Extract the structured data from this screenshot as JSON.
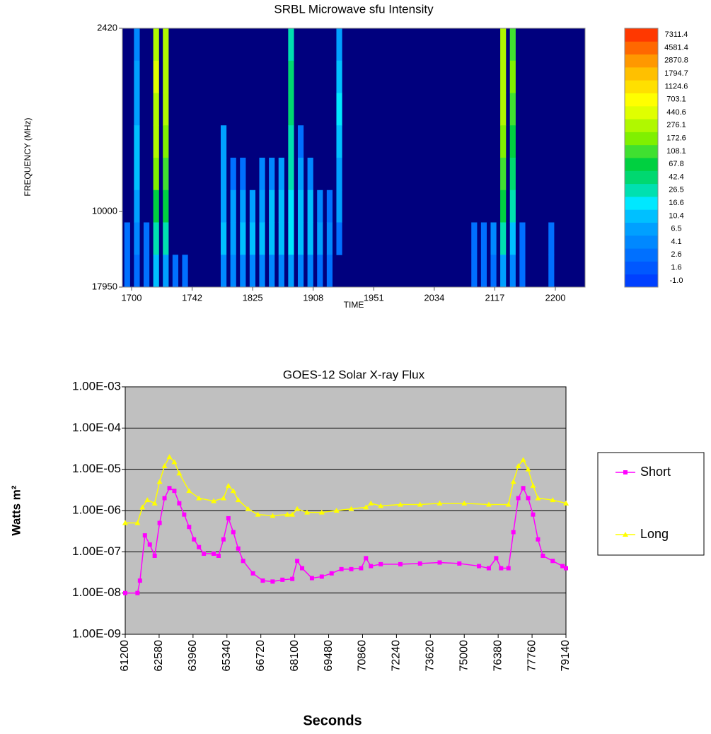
{
  "chart_data": [
    {
      "type": "heatmap",
      "title": "SRBL Microwave sfu Intensity",
      "x_label": "TIME",
      "y_label": "FREQUENCY (MHz)",
      "xtick_labels": [
        "1700",
        "1742",
        "1825",
        "1908",
        "1951",
        "2034",
        "2117",
        "2200"
      ],
      "ylim": [
        17950,
        2420
      ],
      "yticks": [
        2420,
        10000,
        17950
      ],
      "y_log": true,
      "background_color": "#00007e",
      "colorbar": {
        "levels": [
          -1.0,
          1.6,
          2.6,
          4.1,
          6.5,
          10.4,
          16.6,
          26.5,
          42.4,
          67.8,
          108.1,
          172.6,
          276.1,
          440.6,
          703.1,
          1124.6,
          1794.7,
          2870.8,
          4581.4,
          7311.4
        ],
        "labels": [
          "-1.0",
          "1.6",
          "2.6",
          "4.1",
          "6.5",
          "10.4",
          "16.6",
          "26.5",
          "42.4",
          "67.8",
          "108.1",
          "172.6",
          "276.1",
          "440.6",
          "703.1",
          "1124.6",
          "1794.7",
          "2870.8",
          "4581.4",
          "7311.4"
        ],
        "colors": [
          "#0040ff",
          "#0058ff",
          "#0070ff",
          "#0088ff",
          "#00a0ff",
          "#00c0ff",
          "#00e8ff",
          "#00e0b0",
          "#00d870",
          "#00d040",
          "#40e030",
          "#80f000",
          "#b0f800",
          "#e0ff00",
          "#ffff00",
          "#ffe000",
          "#ffc000",
          "#ff9800",
          "#ff6800",
          "#ff3800"
        ]
      },
      "z": [
        [
          null,
          4.1,
          null,
          440,
          300,
          null,
          null,
          null,
          null,
          null,
          null,
          null,
          null,
          null,
          null,
          null,
          null,
          40,
          null,
          null,
          null,
          null,
          10,
          null,
          null,
          null,
          null,
          null,
          null,
          null,
          null,
          null,
          null,
          null,
          null,
          null,
          null,
          null,
          null,
          300,
          150,
          null,
          null,
          null,
          null,
          null,
          null,
          null
        ],
        [
          null,
          6.5,
          null,
          500,
          400,
          null,
          null,
          null,
          null,
          null,
          null,
          null,
          null,
          null,
          null,
          null,
          null,
          60,
          null,
          null,
          null,
          null,
          16,
          null,
          null,
          null,
          null,
          null,
          null,
          null,
          null,
          null,
          null,
          null,
          null,
          null,
          null,
          null,
          null,
          400,
          200,
          null,
          null,
          null,
          null,
          null,
          null,
          null
        ],
        [
          null,
          10,
          null,
          440,
          300,
          null,
          null,
          null,
          null,
          null,
          null,
          null,
          null,
          null,
          null,
          null,
          null,
          50,
          null,
          null,
          null,
          null,
          20,
          null,
          null,
          null,
          null,
          null,
          null,
          null,
          null,
          null,
          null,
          null,
          null,
          null,
          null,
          null,
          null,
          300,
          150,
          null,
          null,
          null,
          null,
          null,
          null,
          null
        ],
        [
          null,
          16,
          null,
          300,
          200,
          null,
          null,
          null,
          null,
          null,
          6.5,
          null,
          null,
          null,
          null,
          null,
          null,
          40,
          4,
          null,
          null,
          null,
          16,
          null,
          null,
          null,
          null,
          null,
          null,
          null,
          null,
          null,
          null,
          null,
          null,
          null,
          null,
          null,
          null,
          200,
          100,
          null,
          null,
          null,
          null,
          null,
          null,
          null
        ],
        [
          null,
          16,
          null,
          200,
          150,
          null,
          null,
          null,
          null,
          null,
          8,
          4,
          4,
          null,
          5,
          6,
          8,
          30,
          8,
          6,
          null,
          null,
          10,
          null,
          null,
          null,
          null,
          null,
          null,
          null,
          null,
          null,
          null,
          null,
          null,
          null,
          null,
          null,
          null,
          150,
          60,
          null,
          null,
          null,
          null,
          null,
          null,
          null
        ],
        [
          null,
          10,
          null,
          100,
          80,
          null,
          null,
          null,
          null,
          null,
          10,
          8,
          10,
          8,
          10,
          12,
          14,
          25,
          16,
          12,
          6,
          4,
          8,
          null,
          null,
          null,
          null,
          null,
          null,
          null,
          null,
          null,
          null,
          null,
          null,
          null,
          null,
          null,
          null,
          80,
          30,
          null,
          null,
          null,
          null,
          null,
          null,
          null
        ],
        [
          3,
          6,
          4,
          40,
          30,
          null,
          null,
          null,
          null,
          null,
          12,
          10,
          14,
          12,
          16,
          14,
          16,
          20,
          14,
          12,
          8,
          6,
          4,
          null,
          null,
          null,
          null,
          null,
          null,
          null,
          null,
          null,
          null,
          null,
          null,
          null,
          3,
          4,
          6,
          30,
          12,
          4,
          null,
          null,
          3,
          null,
          null,
          null
        ],
        [
          3,
          4,
          4,
          16,
          10,
          4,
          3,
          null,
          null,
          null,
          6,
          5,
          6,
          5,
          6,
          6,
          6,
          8,
          6,
          5,
          4,
          3,
          null,
          null,
          null,
          null,
          null,
          null,
          null,
          null,
          null,
          null,
          null,
          null,
          null,
          null,
          3,
          4,
          4,
          10,
          6,
          3,
          null,
          null,
          3,
          null,
          null,
          null
        ]
      ]
    },
    {
      "type": "line",
      "title": "GOES-12 Solar X-ray Flux",
      "x_label": "Seconds",
      "y_label": "Watts m²",
      "xlim": [
        61200,
        79140
      ],
      "xticks": [
        61200,
        62580,
        63960,
        65340,
        66720,
        68100,
        69480,
        70860,
        72240,
        73620,
        75000,
        76380,
        77760,
        79140
      ],
      "ylim": [
        1e-09,
        0.001
      ],
      "y_log": true,
      "yticks": [
        {
          "value": 1e-09,
          "label": "1.00E-09"
        },
        {
          "value": 1e-08,
          "label": "1.00E-08"
        },
        {
          "value": 1e-07,
          "label": "1.00E-07"
        },
        {
          "value": 1e-06,
          "label": "1.00E-06"
        },
        {
          "value": 1e-05,
          "label": "1.00E-05"
        },
        {
          "value": 0.0001,
          "label": "1.00E-04"
        },
        {
          "value": 0.001,
          "label": "1.00E-03"
        }
      ],
      "grid": true,
      "legend": "right",
      "plot_background": "#c0c0c0",
      "series": [
        {
          "name": "Short",
          "color": "#ff00ff",
          "marker": "square",
          "x": [
            61200,
            61700,
            61800,
            62000,
            62200,
            62400,
            62600,
            62800,
            63000,
            63200,
            63400,
            63600,
            63800,
            64000,
            64200,
            64400,
            64800,
            65000,
            65200,
            65400,
            65600,
            65800,
            66000,
            66400,
            66800,
            67200,
            67600,
            68000,
            68200,
            68400,
            68800,
            69200,
            69600,
            70000,
            70400,
            70800,
            71000,
            71200,
            71600,
            72400,
            73200,
            74000,
            74800,
            75600,
            76000,
            76300,
            76500,
            76800,
            77000,
            77200,
            77400,
            77600,
            77800,
            78000,
            78200,
            78600,
            79000,
            79140
          ],
          "values": [
            1e-08,
            1e-08,
            2e-08,
            2.5e-07,
            1.5e-07,
            8e-08,
            5e-07,
            2e-06,
            3.5e-06,
            3e-06,
            1.5e-06,
            8e-07,
            4e-07,
            2e-07,
            1.3e-07,
            9e-08,
            9e-08,
            8e-08,
            2e-07,
            6.5e-07,
            3e-07,
            1.2e-07,
            6e-08,
            3e-08,
            2e-08,
            1.9e-08,
            2.1e-08,
            2.2e-08,
            6e-08,
            4e-08,
            2.3e-08,
            2.5e-08,
            3e-08,
            3.8e-08,
            3.8e-08,
            4e-08,
            7e-08,
            4.5e-08,
            5e-08,
            5e-08,
            5.2e-08,
            5.5e-08,
            5.2e-08,
            4.5e-08,
            4e-08,
            7e-08,
            4e-08,
            4e-08,
            3e-07,
            2e-06,
            3.5e-06,
            2e-06,
            8e-07,
            2e-07,
            8e-08,
            6e-08,
            4.5e-08,
            4e-08
          ]
        },
        {
          "name": "Long",
          "color": "#ffff00",
          "marker": "triangle",
          "x": [
            61200,
            61700,
            61900,
            62100,
            62400,
            62600,
            62800,
            63000,
            63200,
            63400,
            63800,
            64200,
            64800,
            65200,
            65400,
            65600,
            65800,
            66200,
            66600,
            67200,
            67800,
            68000,
            68200,
            68600,
            69200,
            69800,
            70400,
            71000,
            71200,
            71600,
            72400,
            73200,
            74000,
            75000,
            76000,
            76800,
            77000,
            77200,
            77400,
            77600,
            77800,
            78000,
            78600,
            79140
          ],
          "values": [
            5e-07,
            5e-07,
            1.2e-06,
            1.8e-06,
            1.5e-06,
            5e-06,
            1.2e-05,
            2e-05,
            1.5e-05,
            8e-06,
            3e-06,
            2e-06,
            1.7e-06,
            2e-06,
            4e-06,
            3e-06,
            1.8e-06,
            1.1e-06,
            8e-07,
            7.5e-07,
            8e-07,
            8e-07,
            1.1e-06,
            9e-07,
            9e-07,
            1e-06,
            1.1e-06,
            1.2e-06,
            1.5e-06,
            1.3e-06,
            1.4e-06,
            1.4e-06,
            1.5e-06,
            1.5e-06,
            1.4e-06,
            1.4e-06,
            5e-06,
            1.2e-05,
            1.7e-05,
            1e-05,
            4e-06,
            2e-06,
            1.8e-06,
            1.5e-06
          ]
        }
      ]
    }
  ]
}
